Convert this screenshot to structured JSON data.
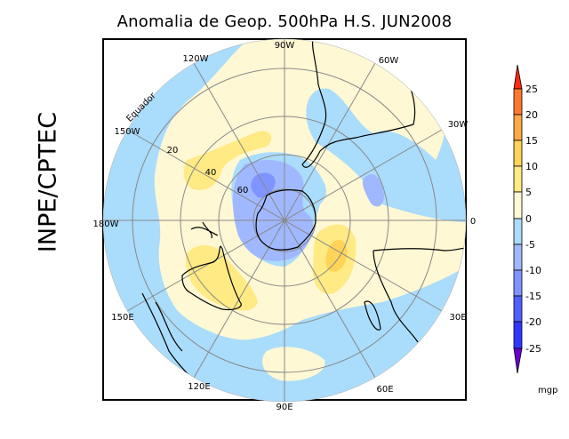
{
  "title": "Anomalia de Geop. 500hPa H.S. JUN2008",
  "side_label": "INPE/CPTEC",
  "map": {
    "projection": "polar stereographic, southern hemisphere",
    "meridian_labels": [
      "90W",
      "60W",
      "30W",
      "0",
      "30E",
      "60E",
      "90E",
      "120E",
      "150E",
      "180W",
      "150W",
      "120W"
    ],
    "latitude_labels": [
      "20",
      "40",
      "60"
    ],
    "equator_label": "Equador"
  },
  "colorbar": {
    "unit": "mgp",
    "ticks": [
      "25",
      "20",
      "15",
      "10",
      "5",
      "0",
      "-5",
      "-10",
      "-15",
      "-20",
      "-25"
    ],
    "colors": {
      "above_25": "#ff2a10",
      "20_25": "#ff7830",
      "15_20": "#ffa848",
      "10_15": "#ffd458",
      "5_10": "#ffea84",
      "0_5": "#fff8d4",
      "m5_0": "#aadcfc",
      "m10_m5": "#a0b8ff",
      "m15_m10": "#8094ff",
      "m20_m15": "#5060ff",
      "m25_m20": "#3038ff",
      "below_m25": "#6a00d0"
    }
  }
}
